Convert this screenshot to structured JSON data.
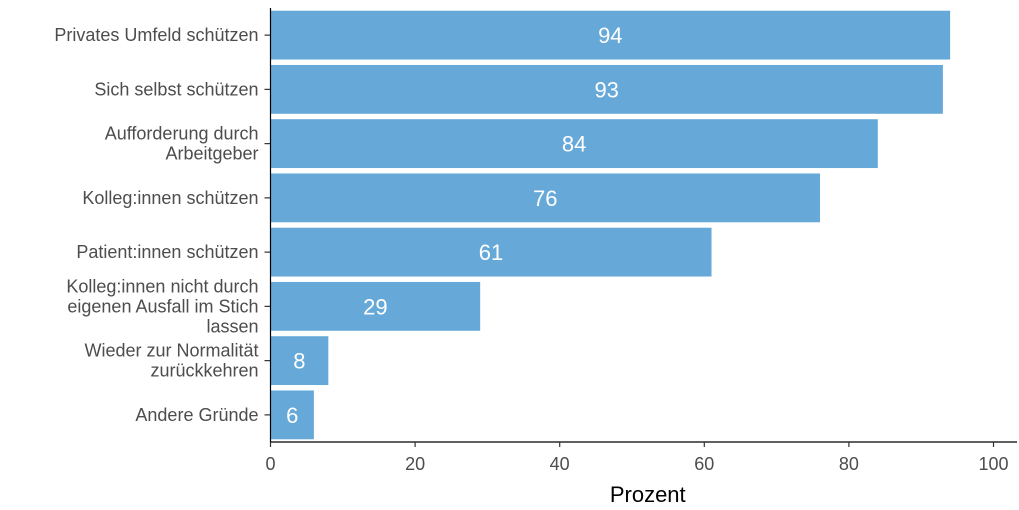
{
  "chart_data": {
    "type": "bar",
    "orientation": "horizontal",
    "categories": [
      [
        "Privates Umfeld schützen"
      ],
      [
        "Sich selbst schützen"
      ],
      [
        "Aufforderung durch",
        "Arbeitgeber"
      ],
      [
        "Kolleg:innen schützen"
      ],
      [
        "Patient:innen schützen"
      ],
      [
        "Kolleg:innen nicht durch",
        "eigenen Ausfall im Stich",
        "lassen"
      ],
      [
        "Wieder zur Normalität",
        "zurückkehren"
      ],
      [
        "Andere Gründe"
      ]
    ],
    "values": [
      94,
      93,
      84,
      76,
      61,
      29,
      8,
      6
    ],
    "data_labels": [
      "94",
      "93",
      "84",
      "76",
      "61",
      "29",
      "8",
      "6"
    ],
    "xlabel": "Prozent",
    "ylabel": "",
    "xlim": [
      0,
      100
    ],
    "xticks": [
      0,
      20,
      40,
      60,
      80,
      100
    ],
    "xtick_labels": [
      "0",
      "20",
      "40",
      "60",
      "80",
      "100"
    ],
    "grid": false,
    "bar_color": "#66a9d8"
  }
}
